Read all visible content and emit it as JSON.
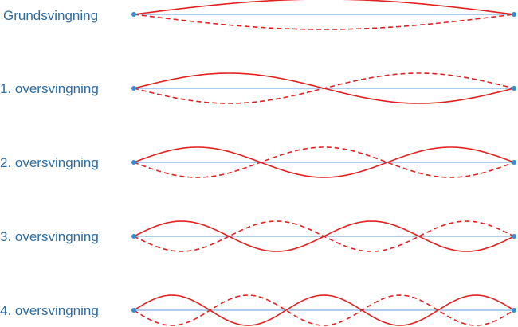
{
  "colors": {
    "label": "#2e6da4",
    "string": "#5b9bd5",
    "wave": "#e32222",
    "endpoint": "#2f8ed6"
  },
  "modes": [
    {
      "label": "Grundsvingning",
      "loops": 1
    },
    {
      "label": "1. oversvingning",
      "loops": 2
    },
    {
      "label": "2. oversvingning",
      "loops": 3
    },
    {
      "label": "3. oversvingning",
      "loops": 4
    },
    {
      "label": "4. oversvingning",
      "loops": 5
    }
  ]
}
